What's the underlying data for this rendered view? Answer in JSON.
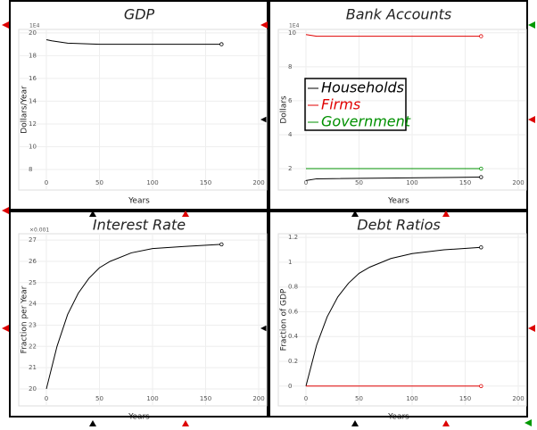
{
  "chart_data": [
    {
      "type": "line",
      "title": "GDP",
      "y_multiplier": "1E4",
      "xlabel": "Years",
      "ylabel": "Dollars/Year",
      "xlim": [
        0,
        200
      ],
      "xticks": [
        0,
        50,
        100,
        150,
        200
      ],
      "ylim": [
        6.2,
        20.3
      ],
      "yticks": [
        8,
        10,
        12,
        14,
        16,
        18,
        20
      ],
      "grid": true,
      "x": [
        0,
        5,
        20,
        50,
        100,
        165
      ],
      "series": [
        {
          "color": "#000000",
          "values": [
            19.4,
            19.3,
            19.1,
            19.0,
            19.0,
            19.0
          ]
        }
      ]
    },
    {
      "type": "line",
      "title": "Bank Accounts",
      "y_multiplier": "1E4",
      "xlabel": "Years",
      "ylabel": "Dollars",
      "xlim": [
        0,
        200
      ],
      "xticks": [
        0,
        50,
        100,
        150,
        200
      ],
      "ylim": [
        0.74,
        10.2
      ],
      "yticks": [
        2,
        4,
        6,
        8,
        10
      ],
      "grid": true,
      "legend": "left",
      "x": [
        0,
        10,
        165
      ],
      "series": [
        {
          "name": "Households",
          "color": "#000000",
          "values": [
            1.3,
            1.4,
            1.5
          ]
        },
        {
          "name": "Firms",
          "color": "#e00000",
          "values": [
            9.9,
            9.8,
            9.8
          ]
        },
        {
          "name": "Government",
          "color": "#009000",
          "values": [
            2.0,
            2.0,
            2.0
          ]
        }
      ]
    },
    {
      "type": "line",
      "title": "Interest Rate",
      "y_multiplier": "×0.001",
      "xlabel": "Years",
      "ylabel": "Fraction per Year",
      "xlim": [
        0,
        200
      ],
      "xticks": [
        0,
        50,
        100,
        150,
        200
      ],
      "ylim": [
        19.2,
        27.3
      ],
      "yticks": [
        20,
        21,
        22,
        23,
        24,
        25,
        26,
        27
      ],
      "grid": true,
      "x": [
        0,
        10,
        20,
        30,
        40,
        50,
        60,
        80,
        100,
        130,
        165
      ],
      "series": [
        {
          "color": "#000000",
          "values": [
            20.0,
            22.0,
            23.5,
            24.5,
            25.2,
            25.7,
            26.0,
            26.4,
            26.6,
            26.7,
            26.8
          ]
        }
      ]
    },
    {
      "type": "line",
      "title": "Debt Ratios",
      "xlabel": "Years",
      "ylabel": "Fraction of GDP",
      "xlim": [
        0,
        200
      ],
      "xticks": [
        0,
        50,
        100,
        150,
        200
      ],
      "ylim": [
        -0.16,
        1.23
      ],
      "yticks": [
        0,
        0.2,
        0.4,
        0.6,
        0.8,
        1,
        1.2
      ],
      "grid": true,
      "x": [
        0,
        10,
        20,
        30,
        40,
        50,
        60,
        80,
        100,
        130,
        165
      ],
      "series": [
        {
          "color": "#000000",
          "values": [
            0,
            0.33,
            0.56,
            0.72,
            0.83,
            0.91,
            0.96,
            1.03,
            1.07,
            1.1,
            1.12
          ]
        },
        {
          "color": "#e00000",
          "values": [
            0,
            0,
            0,
            0,
            0,
            0,
            0,
            0,
            0,
            0,
            0
          ]
        }
      ]
    }
  ]
}
